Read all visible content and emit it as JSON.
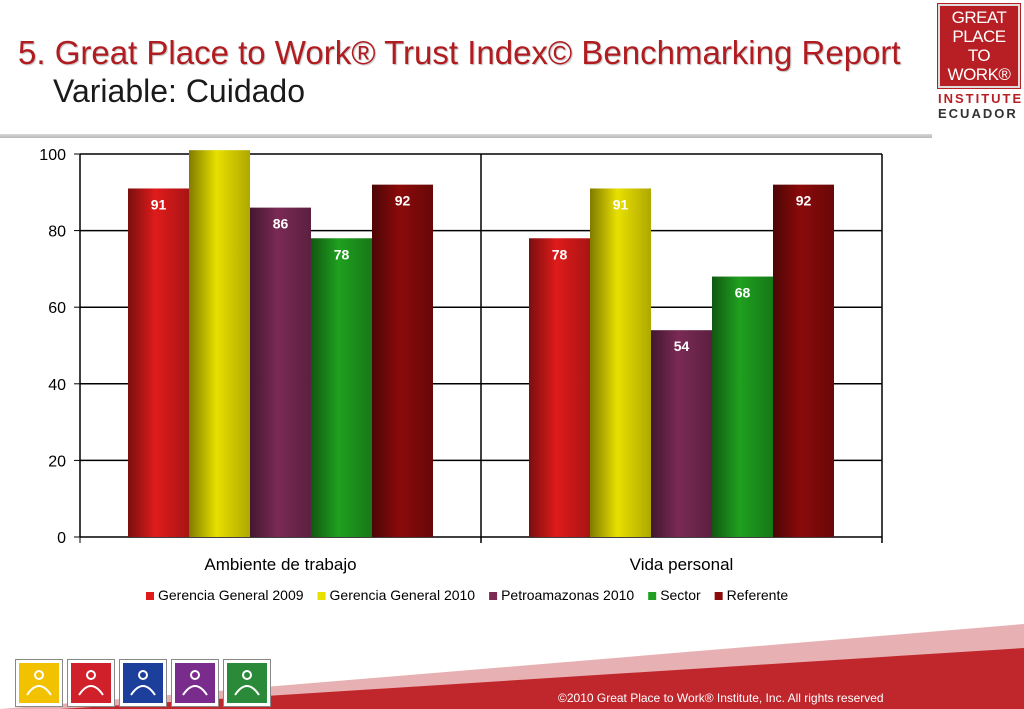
{
  "slide": {
    "title": "5. Great Place to Work® Trust Index© Benchmarking Report",
    "subtitle": "Variable: Cuidado"
  },
  "logo": {
    "lines": [
      "GREAT",
      "PLACE",
      "TO",
      "WORK®"
    ],
    "institute": "INSTITUTE",
    "country": "ECUADOR"
  },
  "footer": {
    "copyright": "©2010 Great Place to Work® Institute, Inc. All rights reserved"
  },
  "icon_tiles": [
    {
      "name": "yellow-team-icon",
      "color": "#f2c200"
    },
    {
      "name": "red-team-icon",
      "color": "#d0202a"
    },
    {
      "name": "blue-team-icon",
      "color": "#1c3f9c"
    },
    {
      "name": "purple-team-icon",
      "color": "#7a2c8c"
    },
    {
      "name": "green-team-icon",
      "color": "#2a8a3a"
    }
  ],
  "colors": {
    "brand_red": "#b01c20",
    "footer_red": "#c0272d"
  },
  "chart_data": {
    "type": "bar",
    "categories": [
      "Ambiente de trabajo",
      "Vida personal"
    ],
    "series": [
      {
        "name": "Gerencia General 2009",
        "color": "#e01b1b",
        "values": [
          91,
          78
        ],
        "labels": [
          "91",
          "78"
        ]
      },
      {
        "name": "Gerencia General 2010",
        "color": "#e8e000",
        "values": [
          101,
          91
        ],
        "labels": [
          "",
          "91"
        ]
      },
      {
        "name": "Petroamazonas 2010",
        "color": "#7a2a55",
        "values": [
          86,
          54
        ],
        "labels": [
          "86",
          "54"
        ]
      },
      {
        "name": "Sector",
        "color": "#1fa01f",
        "values": [
          78,
          68
        ],
        "labels": [
          "78",
          "68"
        ]
      },
      {
        "name": "Referente",
        "color": "#8b0a0a",
        "values": [
          92,
          92
        ],
        "labels": [
          "92",
          "92"
        ]
      }
    ],
    "yticks": [
      "0",
      "20",
      "40",
      "60",
      "80",
      "100"
    ],
    "ylim": [
      0,
      100
    ],
    "grid": true,
    "legend_position": "bottom"
  }
}
